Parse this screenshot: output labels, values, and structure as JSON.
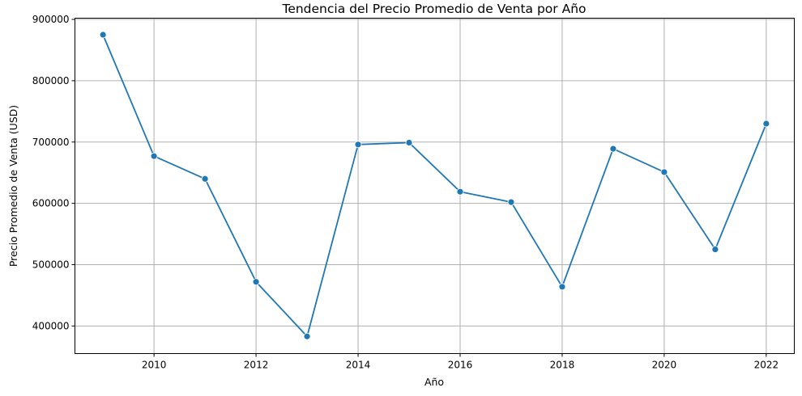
{
  "chart_data": {
    "type": "line",
    "title": "Tendencia del Precio Promedio de Venta por Año",
    "xlabel": "Año",
    "ylabel": "Precio Promedio de Venta (USD)",
    "xlim": [
      2008.45,
      2022.55
    ],
    "ylim": [
      355000,
      902000
    ],
    "x_ticks": [
      2010,
      2012,
      2014,
      2016,
      2018,
      2020,
      2022
    ],
    "y_ticks": [
      400000,
      500000,
      600000,
      700000,
      800000,
      900000
    ],
    "grid": true,
    "legend": "none",
    "series": [
      {
        "color": "#1f77b4",
        "marker": "circle",
        "x": [
          2009,
          2010,
          2011,
          2012,
          2013,
          2014,
          2015,
          2016,
          2017,
          2018,
          2019,
          2020,
          2021,
          2022
        ],
        "y": [
          875000,
          677000,
          640000,
          472000,
          383000,
          696000,
          699000,
          619000,
          602000,
          464000,
          689000,
          651000,
          525000,
          730000
        ]
      }
    ]
  }
}
